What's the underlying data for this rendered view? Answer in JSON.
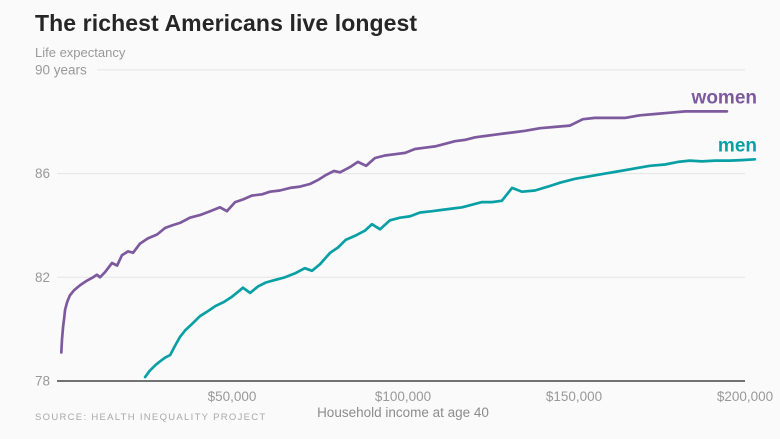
{
  "page": {
    "title": "The richest Americans live longest"
  },
  "style": {
    "background": "#fafafa",
    "grid_color": "#e4e4e4",
    "axis_color": "#454545",
    "muted_text_color": "#999999",
    "title_color": "#262626"
  },
  "chart_data": {
    "type": "line",
    "title": "The richest Americans live longest",
    "ylabel": "Life expectancy",
    "xlabel": "Household income at age 40",
    "source": "SOURCE: HEALTH INEQUALITY PROJECT",
    "xlim": [
      0,
      203000
    ],
    "ylim": [
      78,
      90
    ],
    "grid": true,
    "legend_position": "labels at right end of each line",
    "x_ticks": [
      {
        "value": 50000,
        "label": "$50,000"
      },
      {
        "value": 100000,
        "label": "$100,000"
      },
      {
        "value": 150000,
        "label": "$150,000"
      },
      {
        "value": 200000,
        "label": "$200,000"
      }
    ],
    "y_ticks": [
      {
        "value": 78,
        "label": "78"
      },
      {
        "value": 82,
        "label": "82"
      },
      {
        "value": 86,
        "label": "86"
      },
      {
        "value": 90,
        "label": "90 years"
      }
    ],
    "series": [
      {
        "name": "women",
        "color": "#7d5a9e",
        "points": [
          [
            100,
            79.1
          ],
          [
            300,
            79.6
          ],
          [
            600,
            80.1
          ],
          [
            900,
            80.4
          ],
          [
            1200,
            80.75
          ],
          [
            1800,
            81.05
          ],
          [
            2600,
            81.3
          ],
          [
            3800,
            81.5
          ],
          [
            5600,
            81.7
          ],
          [
            7300,
            81.85
          ],
          [
            9400,
            82.0
          ],
          [
            10500,
            82.1
          ],
          [
            11400,
            82.0
          ],
          [
            12900,
            82.2
          ],
          [
            14900,
            82.55
          ],
          [
            16400,
            82.45
          ],
          [
            17800,
            82.85
          ],
          [
            19600,
            83.0
          ],
          [
            21100,
            82.95
          ],
          [
            23100,
            83.3
          ],
          [
            25400,
            83.5
          ],
          [
            28100,
            83.65
          ],
          [
            30400,
            83.9
          ],
          [
            32500,
            84.0
          ],
          [
            34800,
            84.1
          ],
          [
            37700,
            84.3
          ],
          [
            40600,
            84.4
          ],
          [
            43600,
            84.55
          ],
          [
            46500,
            84.7
          ],
          [
            48500,
            84.55
          ],
          [
            50900,
            84.9
          ],
          [
            53200,
            85.0
          ],
          [
            55800,
            85.15
          ],
          [
            58800,
            85.2
          ],
          [
            61100,
            85.3
          ],
          [
            64000,
            85.35
          ],
          [
            67000,
            85.45
          ],
          [
            69900,
            85.5
          ],
          [
            72800,
            85.6
          ],
          [
            75100,
            85.75
          ],
          [
            77500,
            85.95
          ],
          [
            79800,
            86.1
          ],
          [
            81600,
            86.05
          ],
          [
            84500,
            86.25
          ],
          [
            86800,
            86.45
          ],
          [
            89200,
            86.3
          ],
          [
            91800,
            86.6
          ],
          [
            94700,
            86.7
          ],
          [
            97700,
            86.75
          ],
          [
            100600,
            86.8
          ],
          [
            103500,
            86.95
          ],
          [
            106400,
            87.0
          ],
          [
            109400,
            87.05
          ],
          [
            112300,
            87.15
          ],
          [
            115200,
            87.25
          ],
          [
            118100,
            87.3
          ],
          [
            121100,
            87.4
          ],
          [
            124000,
            87.45
          ],
          [
            126900,
            87.5
          ],
          [
            129800,
            87.55
          ],
          [
            132800,
            87.6
          ],
          [
            135700,
            87.65
          ],
          [
            140100,
            87.75
          ],
          [
            144500,
            87.8
          ],
          [
            148800,
            87.85
          ],
          [
            152600,
            88.1
          ],
          [
            156100,
            88.15
          ],
          [
            160500,
            88.15
          ],
          [
            164900,
            88.15
          ],
          [
            169300,
            88.25
          ],
          [
            173700,
            88.3
          ],
          [
            178100,
            88.35
          ],
          [
            182500,
            88.4
          ],
          [
            186900,
            88.4
          ],
          [
            190400,
            88.4
          ],
          [
            194700,
            88.4
          ]
        ]
      },
      {
        "name": "men",
        "color": "#09a0a5",
        "points": [
          [
            24600,
            78.15
          ],
          [
            26000,
            78.4
          ],
          [
            27500,
            78.6
          ],
          [
            28900,
            78.75
          ],
          [
            30400,
            78.9
          ],
          [
            31900,
            79.0
          ],
          [
            33300,
            79.35
          ],
          [
            34800,
            79.7
          ],
          [
            36300,
            79.95
          ],
          [
            38300,
            80.2
          ],
          [
            40600,
            80.5
          ],
          [
            43000,
            80.7
          ],
          [
            45300,
            80.9
          ],
          [
            47700,
            81.05
          ],
          [
            50000,
            81.25
          ],
          [
            52300,
            81.5
          ],
          [
            53200,
            81.6
          ],
          [
            55300,
            81.4
          ],
          [
            57600,
            81.65
          ],
          [
            59900,
            81.8
          ],
          [
            62600,
            81.9
          ],
          [
            65500,
            82.0
          ],
          [
            68400,
            82.15
          ],
          [
            71300,
            82.35
          ],
          [
            73400,
            82.25
          ],
          [
            75700,
            82.5
          ],
          [
            78700,
            82.95
          ],
          [
            81000,
            83.15
          ],
          [
            83300,
            83.45
          ],
          [
            86000,
            83.6
          ],
          [
            88900,
            83.8
          ],
          [
            90900,
            84.05
          ],
          [
            93300,
            83.85
          ],
          [
            96200,
            84.2
          ],
          [
            99100,
            84.3
          ],
          [
            102000,
            84.35
          ],
          [
            105000,
            84.5
          ],
          [
            108500,
            84.55
          ],
          [
            111400,
            84.6
          ],
          [
            114300,
            84.65
          ],
          [
            117300,
            84.7
          ],
          [
            120200,
            84.8
          ],
          [
            123100,
            84.9
          ],
          [
            126000,
            84.9
          ],
          [
            128900,
            84.95
          ],
          [
            131900,
            85.45
          ],
          [
            134800,
            85.3
          ],
          [
            138600,
            85.35
          ],
          [
            142400,
            85.5
          ],
          [
            145900,
            85.65
          ],
          [
            150300,
            85.8
          ],
          [
            154700,
            85.9
          ],
          [
            159100,
            86.0
          ],
          [
            163500,
            86.1
          ],
          [
            167800,
            86.2
          ],
          [
            172200,
            86.3
          ],
          [
            176600,
            86.35
          ],
          [
            180400,
            86.45
          ],
          [
            183900,
            86.5
          ],
          [
            187400,
            86.47
          ],
          [
            191200,
            86.5
          ],
          [
            195600,
            86.5
          ],
          [
            199100,
            86.52
          ],
          [
            202900,
            86.55
          ]
        ]
      }
    ]
  }
}
